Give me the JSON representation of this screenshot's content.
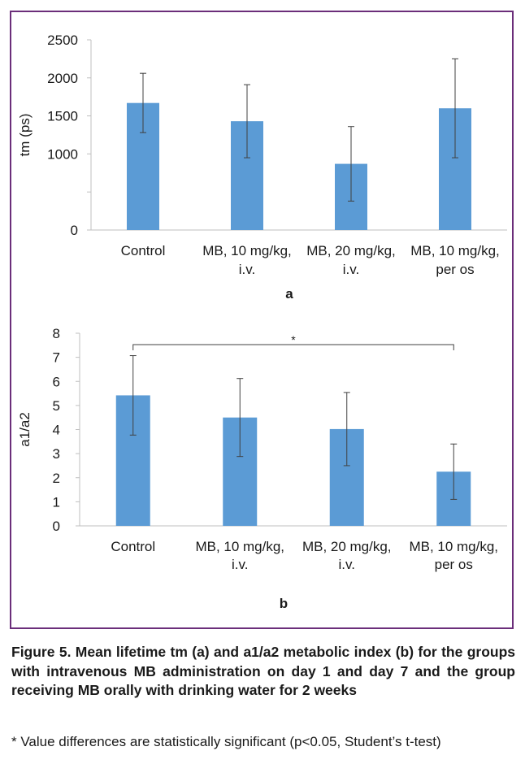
{
  "colors": {
    "bar": "#5b9bd5",
    "frame": "#6b2e7a",
    "axis": "#bfbfbf",
    "error": "#404040",
    "text": "#1a1a1a"
  },
  "chart_data": [
    {
      "type": "bar",
      "panel_label": "a",
      "ylabel": "tm (ps)",
      "xlabel": "",
      "categories": [
        [
          "Control"
        ],
        [
          "MB, 10 mg/kg,",
          "i.v."
        ],
        [
          "MB, 20 mg/kg,",
          "i.v."
        ],
        [
          "MB, 10 mg/kg,",
          "per os"
        ]
      ],
      "values": [
        1670,
        1430,
        870,
        1600
      ],
      "error": [
        390,
        480,
        490,
        650
      ],
      "ylim": [
        0,
        2500
      ],
      "yticks": [
        "0",
        "",
        "1000",
        "1500",
        "2000",
        "2500"
      ],
      "ytick_values": [
        0,
        500,
        1000,
        1500,
        2000,
        2500
      ],
      "grid": false
    },
    {
      "type": "bar",
      "panel_label": "b",
      "ylabel": "a1/a2",
      "xlabel": "",
      "categories": [
        [
          "Control"
        ],
        [
          "MB, 10 mg/kg,",
          "i.v."
        ],
        [
          "MB, 20 mg/kg,",
          "i.v."
        ],
        [
          "MB, 10 mg/kg,",
          "per os"
        ]
      ],
      "values": [
        5.42,
        4.5,
        4.02,
        2.25
      ],
      "error": [
        1.65,
        1.62,
        1.52,
        1.15
      ],
      "ylim": [
        0,
        8
      ],
      "yticks": [
        "0",
        "1",
        "2",
        "3",
        "4",
        "5",
        "6",
        "7",
        "8"
      ],
      "ytick_values": [
        0,
        1,
        2,
        3,
        4,
        5,
        6,
        7,
        8
      ],
      "grid": false,
      "significance": {
        "from": 0,
        "to": 3,
        "label": "*"
      }
    }
  ],
  "caption": {
    "title": "Figure 5. Mean lifetime tm (a) and a1/a2 metabolic index (b) for the groups with intravenous MB administration on day 1 and day 7 and the group receiving MB orally with drinking water for 2 weeks",
    "note": "* Value differences are statistically significant (p<0.05, Student’s t-test)"
  }
}
